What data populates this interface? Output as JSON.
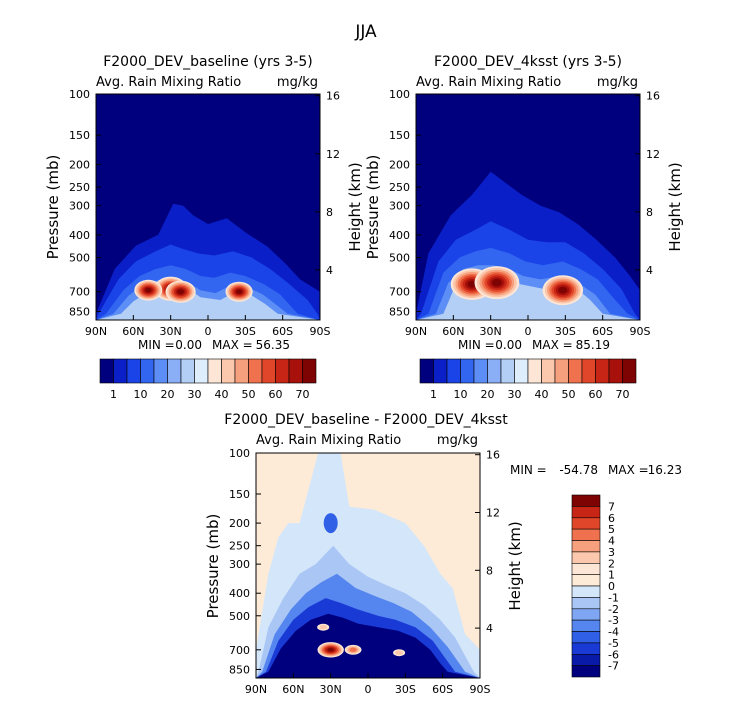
{
  "figure_title": "JJA",
  "chart_data": [
    {
      "type": "heatmap",
      "id": "panel-baseline",
      "title": "F2000_DEV_baseline (yrs 3-5)",
      "variable": "Avg. Rain Mixing Ratio",
      "units": "mg/kg",
      "xlabel": "",
      "ylabel": "Pressure (mb)",
      "ylabel_right": "Height (km)",
      "x_ticks": [
        "90N",
        "60N",
        "30N",
        "0",
        "30S",
        "60S",
        "90S"
      ],
      "x_tick_values": [
        90,
        60,
        30,
        0,
        -30,
        -60,
        -90
      ],
      "y_ticks": [
        "100",
        "150",
        "200",
        "250",
        "300",
        "400",
        "500",
        "700",
        "850"
      ],
      "y_tick_values": [
        100,
        150,
        200,
        250,
        300,
        400,
        500,
        700,
        850
      ],
      "y_range": [
        100,
        925
      ],
      "height_ticks": [
        "16",
        "12",
        "8",
        "4"
      ],
      "height_tick_values": [
        16,
        12,
        8,
        4
      ],
      "min_label": "MIN =",
      "min_value": "0.00",
      "max_label": "MAX =",
      "max_value": "56.35",
      "colorbar_labels": [
        "1",
        "10",
        "20",
        "30",
        "40",
        "50",
        "60",
        "70"
      ],
      "colorbar_colors": [
        "#00007e",
        "#0a1fc8",
        "#1a44e8",
        "#3366f0",
        "#5d8ef5",
        "#8aaff7",
        "#b4cff5",
        "#dfeefc",
        "#fde6d6",
        "#fbc8ad",
        "#f7a07e",
        "#f0714d",
        "#e0472a",
        "#c72616",
        "#a8100b",
        "#7e0303"
      ],
      "rain_blobs": [
        {
          "lat": 30,
          "p": 680,
          "value": 56
        },
        {
          "lat": 48,
          "p": 690,
          "value": 45
        },
        {
          "lat": 22,
          "p": 700,
          "value": 50
        },
        {
          "lat": -25,
          "p": 700,
          "value": 43
        }
      ]
    },
    {
      "type": "heatmap",
      "id": "panel-4ksst",
      "title": "F2000_DEV_4ksst (yrs 3-5)",
      "variable": "Avg. Rain Mixing Ratio",
      "units": "mg/kg",
      "xlabel": "",
      "ylabel": "Pressure (mb)",
      "ylabel_right": "Height (km)",
      "x_ticks": [
        "90N",
        "60N",
        "30N",
        "0",
        "30S",
        "60S",
        "90S"
      ],
      "x_tick_values": [
        90,
        60,
        30,
        0,
        -30,
        -60,
        -90
      ],
      "y_ticks": [
        "100",
        "150",
        "200",
        "250",
        "300",
        "400",
        "500",
        "700",
        "850"
      ],
      "y_tick_values": [
        100,
        150,
        200,
        250,
        300,
        400,
        500,
        700,
        850
      ],
      "y_range": [
        100,
        925
      ],
      "height_ticks": [
        "16",
        "12",
        "8",
        "4"
      ],
      "height_tick_values": [
        16,
        12,
        8,
        4
      ],
      "min_label": "MIN =",
      "min_value": "0.00",
      "max_label": "MAX =",
      "max_value": "85.19",
      "colorbar_labels": [
        "1",
        "10",
        "20",
        "30",
        "40",
        "50",
        "60",
        "70"
      ],
      "colorbar_colors": [
        "#00007e",
        "#0a1fc8",
        "#1a44e8",
        "#3366f0",
        "#5d8ef5",
        "#8aaff7",
        "#b4cff5",
        "#dfeefc",
        "#fde6d6",
        "#fbc8ad",
        "#f7a07e",
        "#f0714d",
        "#e0472a",
        "#c72616",
        "#a8100b",
        "#7e0303"
      ],
      "rain_blobs": [
        {
          "lat": 45,
          "p": 650,
          "value": 80
        },
        {
          "lat": 25,
          "p": 640,
          "value": 85
        },
        {
          "lat": -28,
          "p": 690,
          "value": 75
        }
      ]
    },
    {
      "type": "heatmap",
      "id": "panel-difference",
      "title": "F2000_DEV_baseline - F2000_DEV_4ksst",
      "variable": "Avg. Rain Mixing Ratio",
      "units": "mg/kg",
      "xlabel": "",
      "ylabel": "Pressure (mb)",
      "ylabel_right": "Height (km)",
      "x_ticks": [
        "90N",
        "60N",
        "30N",
        "0",
        "30S",
        "60S",
        "90S"
      ],
      "x_tick_values": [
        90,
        60,
        30,
        0,
        -30,
        -60,
        -90
      ],
      "y_ticks": [
        "100",
        "150",
        "200",
        "250",
        "300",
        "400",
        "500",
        "700",
        "850"
      ],
      "y_tick_values": [
        100,
        150,
        200,
        250,
        300,
        400,
        500,
        700,
        850
      ],
      "y_range": [
        100,
        925
      ],
      "height_ticks": [
        "16",
        "12",
        "8",
        "4"
      ],
      "height_tick_values": [
        16,
        12,
        8,
        4
      ],
      "min_label": "MIN =",
      "min_value": "-54.78",
      "max_label": "MAX =",
      "max_value": "16.23",
      "colorbar_labels": [
        "7",
        "6",
        "5",
        "4",
        "3",
        "2",
        "1",
        "0",
        "-1",
        "-2",
        "-3",
        "-4",
        "-5",
        "-6",
        "-7"
      ],
      "colorbar_colors": [
        "#7e0303",
        "#c72616",
        "#e0472a",
        "#f0714d",
        "#f7a07e",
        "#fbc8ad",
        "#fde6d6",
        "#fdebd8",
        "#d4e6fa",
        "#a9c6f5",
        "#7ea6f2",
        "#5585ee",
        "#2f60e6",
        "#1a3ad6",
        "#0a1aa8",
        "#00007e"
      ],
      "positive_spots": [
        {
          "lat": 30,
          "p": 700,
          "value": 16
        },
        {
          "lat": 12,
          "p": 700,
          "value": 8
        },
        {
          "lat": -25,
          "p": 720,
          "value": 4
        },
        {
          "lat": 36,
          "p": 560,
          "value": 4
        }
      ]
    }
  ]
}
